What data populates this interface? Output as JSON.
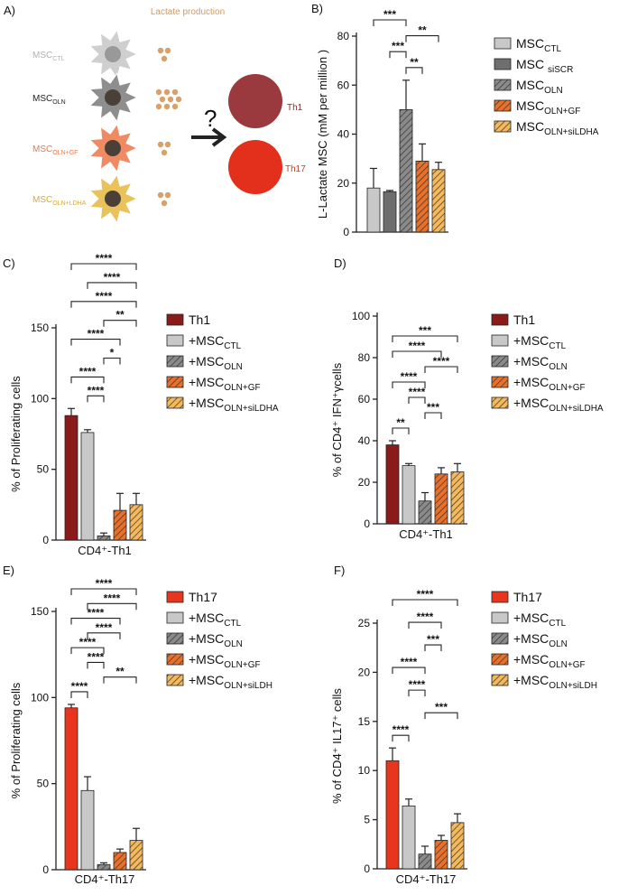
{
  "diagram": {
    "label": "A)",
    "header": "Lactate production",
    "cells": [
      {
        "name": "MSC",
        "sub": "CTL"
      },
      {
        "name": "MSC",
        "sub": "OLN"
      },
      {
        "name": "MSC",
        "sub": "OLN+GF"
      },
      {
        "name": "MSC",
        "sub": "OLN+LDHA"
      }
    ],
    "question": "?",
    "targets": [
      "Th1",
      "Th17"
    ]
  },
  "chart_data": [
    {
      "type": "bar",
      "panel": "B)",
      "ylabel": "L-Lactate MSC (mM per million )",
      "categories": [
        null
      ],
      "ylim": [
        0,
        80
      ],
      "yticks": [
        0,
        20,
        40,
        60,
        80
      ],
      "series": [
        {
          "name": "MSC",
          "subscript": "CTL",
          "color": "#c8c8c8",
          "hatch": false,
          "values": [
            18
          ],
          "errors": [
            8
          ]
        },
        {
          "name": "MSC ",
          "subscript": "siSCR",
          "color": "#6e6e6e",
          "hatch": false,
          "values": [
            16.5
          ],
          "errors": [
            0.5
          ]
        },
        {
          "name": "MSC",
          "subscript": "OLN",
          "color": "#8a8a8a",
          "hatch": true,
          "values": [
            50
          ],
          "errors": [
            12
          ]
        },
        {
          "name": "MSC",
          "subscript": "OLN+GF",
          "color": "#e8702a",
          "hatch": true,
          "values": [
            29
          ],
          "errors": [
            7
          ]
        },
        {
          "name": "MSC",
          "subscript": "OLN+siLDHA",
          "color": "#f5b85a",
          "hatch": true,
          "values": [
            25.5
          ],
          "errors": [
            3
          ]
        }
      ],
      "brackets": [
        {
          "pair": [
            2,
            3
          ],
          "label": "**"
        },
        {
          "pair": [
            1,
            2
          ],
          "label": "***"
        },
        {
          "pair": [
            2,
            4
          ],
          "label": "**"
        },
        {
          "pair": [
            0,
            2
          ],
          "label": "***"
        }
      ]
    },
    {
      "type": "bar",
      "panel": "C)",
      "ylabel": "% of Proliferating cells",
      "categories": [
        "CD4⁺-Th1"
      ],
      "ylim": [
        0,
        150
      ],
      "yticks": [
        0,
        50,
        100,
        150
      ],
      "series": [
        {
          "name": "Th1",
          "color": "#8b1a1a",
          "hatch": false,
          "values": [
            88
          ],
          "errors": [
            5
          ]
        },
        {
          "name": "+MSC",
          "subscript": "CTL",
          "color": "#c8c8c8",
          "hatch": false,
          "values": [
            76
          ],
          "errors": [
            2
          ]
        },
        {
          "name": "+MSC",
          "subscript": "OLN",
          "color": "#8a8a8a",
          "hatch": true,
          "values": [
            3
          ],
          "errors": [
            2
          ]
        },
        {
          "name": "+MSC",
          "subscript": "OLN+GF",
          "color": "#e8702a",
          "hatch": true,
          "values": [
            21
          ],
          "errors": [
            12
          ]
        },
        {
          "name": "+MSC",
          "subscript": "OLN+siLDHA",
          "color": "#f5b85a",
          "hatch": true,
          "values": [
            25
          ],
          "errors": [
            8
          ]
        }
      ],
      "brackets": [
        {
          "pair": [
            1,
            2
          ],
          "label": "****"
        },
        {
          "pair": [
            0,
            2
          ],
          "label": "****"
        },
        {
          "pair": [
            2,
            3
          ],
          "label": "*"
        },
        {
          "pair": [
            0,
            3
          ],
          "label": "****"
        },
        {
          "pair": [
            2,
            4
          ],
          "label": "**"
        },
        {
          "pair": [
            0,
            4
          ],
          "label": "****"
        },
        {
          "pair": [
            1,
            4
          ],
          "label": "****"
        },
        {
          "pair": [
            0,
            4
          ],
          "label": "****"
        }
      ]
    },
    {
      "type": "bar",
      "panel": "D)",
      "ylabel": "% of CD4⁺ IFN⁺γcells",
      "categories": [
        "CD4⁺-Th1"
      ],
      "ylim": [
        0,
        100
      ],
      "yticks": [
        0,
        20,
        40,
        60,
        80,
        100
      ],
      "series": [
        {
          "name": "Th1",
          "color": "#8b1a1a",
          "hatch": false,
          "values": [
            38
          ],
          "errors": [
            2
          ]
        },
        {
          "name": "+MSC",
          "subscript": "CTL",
          "color": "#c8c8c8",
          "hatch": false,
          "values": [
            28
          ],
          "errors": [
            1
          ]
        },
        {
          "name": "+MSC",
          "subscript": "OLN",
          "color": "#8a8a8a",
          "hatch": true,
          "values": [
            11
          ],
          "errors": [
            4
          ]
        },
        {
          "name": "+MSC",
          "subscript": "OLN+GF",
          "color": "#e8702a",
          "hatch": true,
          "values": [
            24
          ],
          "errors": [
            3
          ]
        },
        {
          "name": "+MSC",
          "subscript": "OLN+siLDHA",
          "color": "#f5b85a",
          "hatch": true,
          "values": [
            25
          ],
          "errors": [
            4
          ]
        }
      ],
      "brackets": [
        {
          "pair": [
            0,
            1
          ],
          "label": "**"
        },
        {
          "pair": [
            2,
            3
          ],
          "label": "***"
        },
        {
          "pair": [
            1,
            2
          ],
          "label": "****"
        },
        {
          "pair": [
            0,
            2
          ],
          "label": "****"
        },
        {
          "pair": [
            2,
            4
          ],
          "label": "****"
        },
        {
          "pair": [
            0,
            3
          ],
          "label": "****"
        },
        {
          "pair": [
            0,
            4
          ],
          "label": "***"
        }
      ]
    },
    {
      "type": "bar",
      "panel": "E)",
      "ylabel": "% of Proliferating cells",
      "categories": [
        "CD4⁺-Th17"
      ],
      "ylim": [
        0,
        150
      ],
      "yticks": [
        0,
        50,
        100,
        150
      ],
      "series": [
        {
          "name": "Th17",
          "color": "#e8361e",
          "hatch": false,
          "values": [
            94
          ],
          "errors": [
            2
          ]
        },
        {
          "name": "+MSC",
          "subscript": "CTL",
          "color": "#c8c8c8",
          "hatch": false,
          "values": [
            46
          ],
          "errors": [
            8
          ]
        },
        {
          "name": "+MSC",
          "subscript": "OLN",
          "color": "#8a8a8a",
          "hatch": true,
          "values": [
            3
          ],
          "errors": [
            1
          ]
        },
        {
          "name": "+MSC",
          "subscript": "OLN+GF",
          "color": "#e8702a",
          "hatch": true,
          "values": [
            10
          ],
          "errors": [
            2
          ]
        },
        {
          "name": "+MSC",
          "subscript": "OLN+siLDH",
          "color": "#f5b85a",
          "hatch": true,
          "values": [
            17
          ],
          "errors": [
            7
          ]
        }
      ],
      "brackets": [
        {
          "pair": [
            0,
            1
          ],
          "label": "****"
        },
        {
          "pair": [
            2,
            4
          ],
          "label": "**"
        },
        {
          "pair": [
            1,
            2
          ],
          "label": "****"
        },
        {
          "pair": [
            0,
            2
          ],
          "label": "****"
        },
        {
          "pair": [
            1,
            3
          ],
          "label": "****"
        },
        {
          "pair": [
            0,
            3
          ],
          "label": "****"
        },
        {
          "pair": [
            1,
            4
          ],
          "label": "****"
        },
        {
          "pair": [
            0,
            4
          ],
          "label": "****"
        }
      ]
    },
    {
      "type": "bar",
      "panel": "F)",
      "ylabel": "% of CD4⁺ IL17⁺ cells",
      "categories": [
        "CD4⁺-Th17"
      ],
      "ylim": [
        0,
        25
      ],
      "yticks": [
        0,
        5,
        10,
        15,
        20,
        25
      ],
      "series": [
        {
          "name": "Th17",
          "color": "#e8361e",
          "hatch": false,
          "values": [
            11
          ],
          "errors": [
            1.3
          ]
        },
        {
          "name": "+MSC",
          "subscript": "CTL",
          "color": "#c8c8c8",
          "hatch": false,
          "values": [
            6.4
          ],
          "errors": [
            0.7
          ]
        },
        {
          "name": "+MSC",
          "subscript": "OLN",
          "color": "#8a8a8a",
          "hatch": true,
          "values": [
            1.5
          ],
          "errors": [
            0.8
          ]
        },
        {
          "name": "+MSC",
          "subscript": "OLN+GF",
          "color": "#e8702a",
          "hatch": true,
          "values": [
            2.9
          ],
          "errors": [
            0.5
          ]
        },
        {
          "name": "+MSC",
          "subscript": "OLN+siLDH",
          "color": "#f5b85a",
          "hatch": true,
          "values": [
            4.7
          ],
          "errors": [
            0.9
          ]
        }
      ],
      "brackets": [
        {
          "pair": [
            0,
            1
          ],
          "label": "****"
        },
        {
          "pair": [
            2,
            4
          ],
          "label": "***"
        },
        {
          "pair": [
            1,
            2
          ],
          "label": "****"
        },
        {
          "pair": [
            0,
            2
          ],
          "label": "****"
        },
        {
          "pair": [
            2,
            3
          ],
          "label": "***"
        },
        {
          "pair": [
            1,
            3
          ],
          "label": "****"
        },
        {
          "pair": [
            0,
            4
          ],
          "label": "****"
        }
      ]
    }
  ]
}
